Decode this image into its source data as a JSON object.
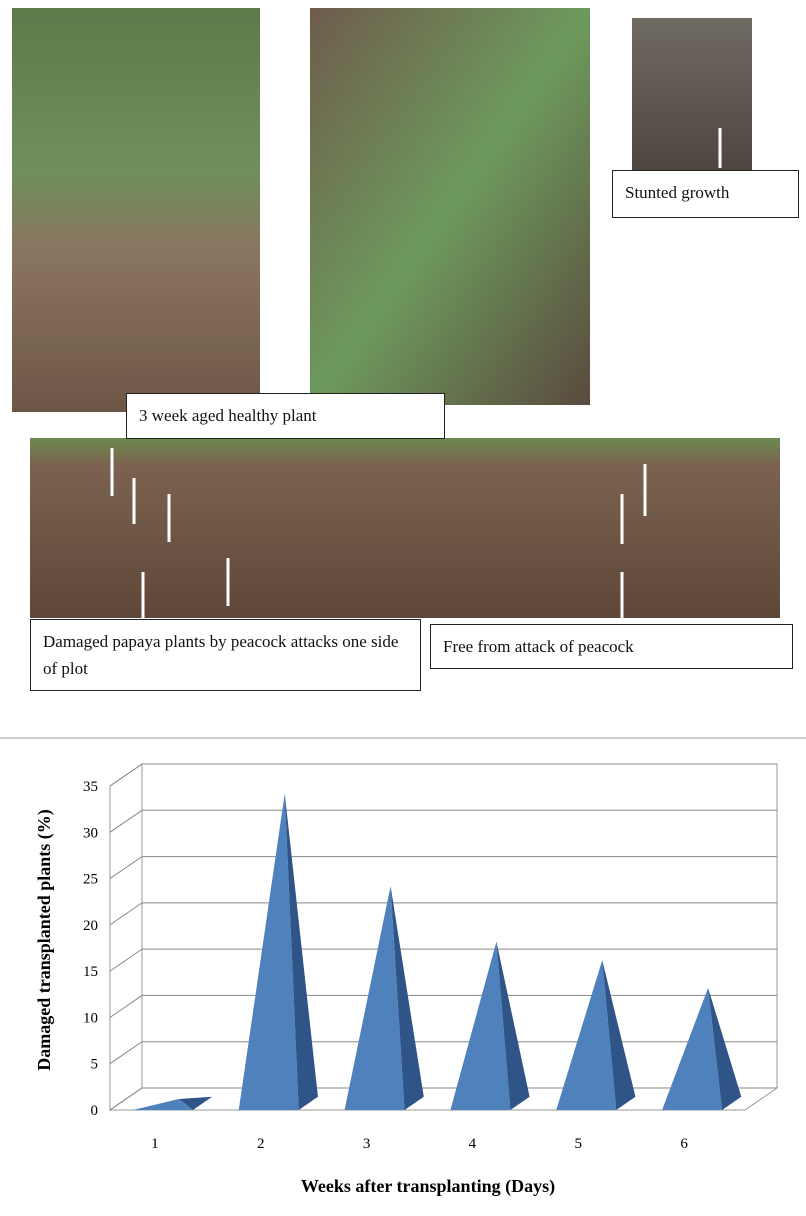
{
  "photos": {
    "healthy_caption": "3 week aged healthy plant",
    "stunted_caption": "Stunted growth",
    "damaged_caption": "Damaged papaya plants by peacock attacks one side of plot",
    "free_caption": "Free from attack of peacock"
  },
  "chart_data": {
    "type": "pyramid",
    "x_label": "Weeks after transplanting  (Days)",
    "y_label": "Damaged transplanted  plants  (%)",
    "categories": [
      "1",
      "2",
      "3",
      "4",
      "5",
      "6"
    ],
    "values": [
      0,
      33,
      23,
      17,
      15,
      12
    ],
    "color": "#4f81bd",
    "ylim": [
      0,
      35
    ],
    "yticks": [
      0,
      5,
      10,
      15,
      20,
      25,
      30,
      35
    ],
    "grid": true
  }
}
